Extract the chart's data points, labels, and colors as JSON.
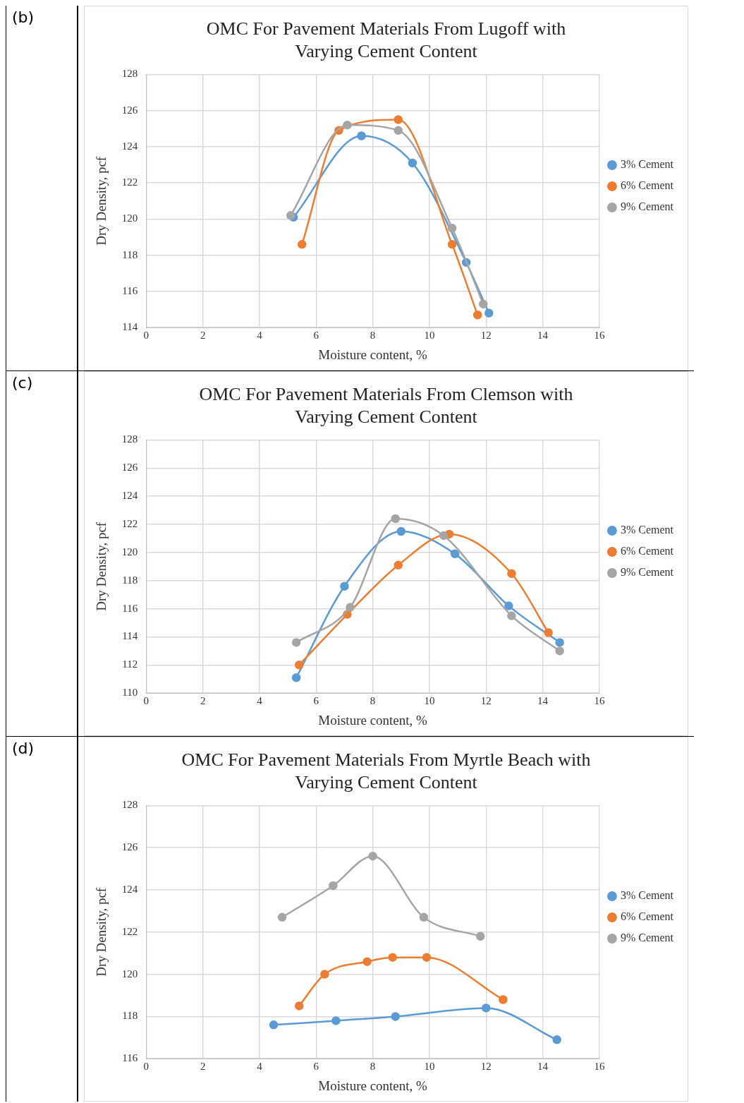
{
  "chart_data": [
    {
      "type": "line",
      "title": "OMC For Pavement Materials From Lugoff with Varying Cement Content",
      "xlabel": "Moisture content, %",
      "ylabel": "Dry Density, pcf",
      "annotations": [
        "(b)"
      ],
      "xlim": [
        0,
        16
      ],
      "xticks": [
        0,
        2,
        4,
        6,
        8,
        10,
        12,
        14,
        16
      ],
      "ylim": [
        114,
        128
      ],
      "yticks": [
        114,
        116,
        118,
        120,
        122,
        124,
        126,
        128
      ],
      "grid": true,
      "legend": "right",
      "marker": "circle",
      "line_style": "solid",
      "series": [
        {
          "name": "3% Cement",
          "color": "#5b9bd5",
          "x": [
            5.2,
            7.6,
            9.4,
            11.3,
            12.1
          ],
          "values": [
            120.1,
            124.6,
            123.1,
            117.6,
            114.8
          ]
        },
        {
          "name": "6% Cement",
          "color": "#ed7d31",
          "x": [
            5.5,
            6.8,
            8.9,
            10.8,
            11.7
          ],
          "values": [
            118.6,
            124.9,
            125.5,
            118.6,
            114.7
          ]
        },
        {
          "name": "9% Cement",
          "color": "#a5a5a5",
          "x": [
            5.1,
            7.1,
            8.9,
            10.8,
            11.9
          ],
          "values": [
            120.2,
            125.2,
            124.9,
            119.5,
            115.3
          ]
        }
      ]
    },
    {
      "type": "line",
      "title": "OMC For Pavement Materials From Clemson with Varying Cement Content",
      "xlabel": "Moisture content, %",
      "ylabel": "Dry Density, pcf",
      "annotations": [
        "(c)"
      ],
      "xlim": [
        0,
        16
      ],
      "xticks": [
        0,
        2,
        4,
        6,
        8,
        10,
        12,
        14,
        16
      ],
      "ylim": [
        110,
        128
      ],
      "yticks": [
        110,
        112,
        114,
        116,
        118,
        120,
        122,
        124,
        126,
        128
      ],
      "grid": true,
      "legend": "right",
      "marker": "circle",
      "line_style": "solid",
      "series": [
        {
          "name": "3% Cement",
          "color": "#5b9bd5",
          "x": [
            5.3,
            7.0,
            9.0,
            10.9,
            12.8,
            14.6
          ],
          "values": [
            111.1,
            117.6,
            121.5,
            119.9,
            116.2,
            113.6
          ]
        },
        {
          "name": "6% Cement",
          "color": "#ed7d31",
          "x": [
            5.4,
            7.1,
            8.9,
            10.7,
            12.9,
            14.2
          ],
          "values": [
            112.0,
            115.6,
            119.1,
            121.3,
            118.5,
            114.3
          ]
        },
        {
          "name": "9% Cement",
          "color": "#a5a5a5",
          "x": [
            5.3,
            7.2,
            8.8,
            10.5,
            12.9,
            14.6
          ],
          "values": [
            113.6,
            116.1,
            122.4,
            121.2,
            115.5,
            113.0
          ]
        }
      ]
    },
    {
      "type": "line",
      "title": "OMC For Pavement Materials From Myrtle Beach with Varying Cement Content",
      "xlabel": "Moisture content, %",
      "ylabel": "Dry Density, pcf",
      "annotations": [
        "(d)"
      ],
      "xlim": [
        0,
        16
      ],
      "xticks": [
        0,
        2,
        4,
        6,
        8,
        10,
        12,
        14,
        16
      ],
      "ylim": [
        116,
        128
      ],
      "yticks": [
        116,
        118,
        120,
        122,
        124,
        126,
        128
      ],
      "grid": true,
      "legend": "right",
      "marker": "circle",
      "line_style": "solid",
      "series": [
        {
          "name": "3% Cement",
          "color": "#5b9bd5",
          "x": [
            4.5,
            6.7,
            8.8,
            12.0,
            14.5
          ],
          "values": [
            117.6,
            117.8,
            118.0,
            118.4,
            116.9
          ]
        },
        {
          "name": "6% Cement",
          "color": "#ed7d31",
          "x": [
            5.4,
            6.3,
            7.8,
            8.7,
            9.9,
            12.6
          ],
          "values": [
            118.5,
            120.0,
            120.6,
            120.8,
            120.8,
            118.8
          ]
        },
        {
          "name": "9% Cement",
          "color": "#a5a5a5",
          "x": [
            4.8,
            6.6,
            8.0,
            9.8,
            11.8
          ],
          "values": [
            122.7,
            124.2,
            125.6,
            122.7,
            121.8
          ]
        }
      ]
    }
  ]
}
